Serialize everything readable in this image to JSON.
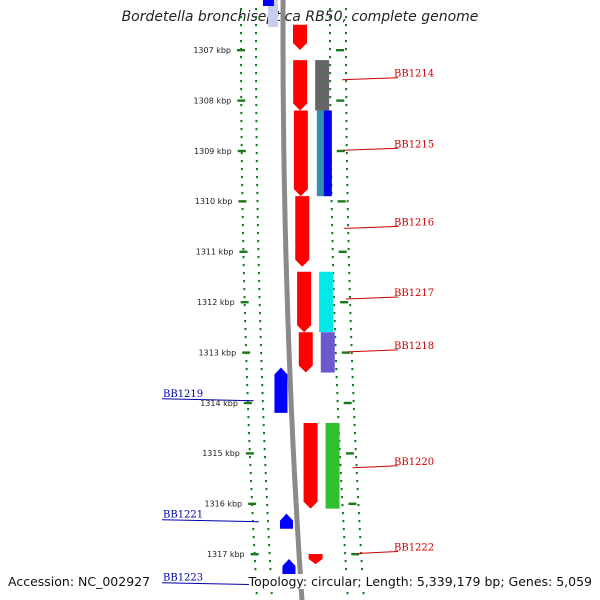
{
  "title": "Bordetella bronchiseptica RB50, complete genome",
  "accession": "Accession: NC_002927",
  "topology": "Topology: circular; Length: 5,339,179 bp; Genes: 5,059",
  "colors": {
    "ruler": "#1a7a1a",
    "backbone": "#8a8a8a",
    "plus_gene": "#ff0000",
    "minus_gene": "#0000ff",
    "plus_label": "#cc0000",
    "minus_label": "#0000aa"
  },
  "ticks": [
    {
      "kbp": 1307,
      "label": "1307 kbp"
    },
    {
      "kbp": 1308,
      "label": "1308 kbp"
    },
    {
      "kbp": 1309,
      "label": "1309 kbp"
    },
    {
      "kbp": 1310,
      "label": "1310 kbp"
    },
    {
      "kbp": 1311,
      "label": "1311 kbp"
    },
    {
      "kbp": 1312,
      "label": "1312 kbp"
    },
    {
      "kbp": 1313,
      "label": "1313 kbp"
    },
    {
      "kbp": 1314,
      "label": "1314 kbp"
    },
    {
      "kbp": 1315,
      "label": "1315 kbp"
    },
    {
      "kbp": 1316,
      "label": "1316 kbp"
    },
    {
      "kbp": 1317,
      "label": "1317 kbp"
    }
  ],
  "genes_plus": [
    {
      "name": "",
      "start": 1306.5,
      "end": 1307.0
    },
    {
      "name": "BB1214",
      "start": 1307.2,
      "end": 1308.2
    },
    {
      "name": "BB1215",
      "start": 1308.2,
      "end": 1309.9
    },
    {
      "name": "BB1216",
      "start": 1309.9,
      "end": 1311.3
    },
    {
      "name": "BB1217",
      "start": 1311.4,
      "end": 1312.6
    },
    {
      "name": "BB1218",
      "start": 1312.6,
      "end": 1313.4
    },
    {
      "name": "BB1220",
      "start": 1314.4,
      "end": 1316.1
    },
    {
      "name": "BB1222",
      "start": 1317.0,
      "end": 1317.2
    }
  ],
  "genes_minus": [
    {
      "name": "BB1219",
      "start": 1313.3,
      "end": 1314.2
    },
    {
      "name": "BB1221",
      "start": 1316.2,
      "end": 1316.5
    },
    {
      "name": "BB1223",
      "start": 1317.1,
      "end": 1317.5
    }
  ],
  "features_plus": [
    {
      "start": 1307.2,
      "end": 1308.2,
      "color": "#666666"
    },
    {
      "start": 1308.2,
      "end": 1309.9,
      "color": "#3090b0"
    },
    {
      "start": 1308.2,
      "end": 1309.9,
      "color": "#0000ee"
    },
    {
      "start": 1311.4,
      "end": 1312.6,
      "color": "#00e8e8"
    },
    {
      "start": 1312.6,
      "end": 1313.4,
      "color": "#6a5acd"
    },
    {
      "start": 1314.4,
      "end": 1316.1,
      "color": "#30c030"
    }
  ],
  "label_positions_kbp": {
    "BB1214": 1307.55,
    "BB1215": 1308.95,
    "BB1216": 1310.5,
    "BB1217": 1311.9,
    "BB1218": 1312.95,
    "BB1220": 1315.25,
    "BB1222": 1316.95,
    "BB1219": 1313.9,
    "BB1221": 1316.3,
    "BB1223": 1317.55
  }
}
